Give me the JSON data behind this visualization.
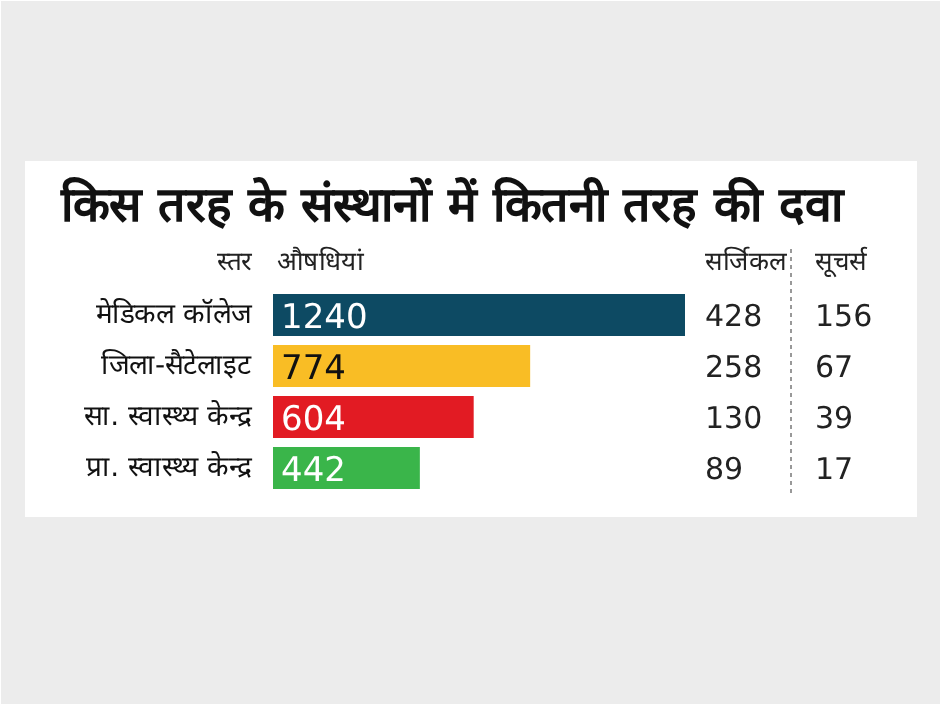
{
  "chart_data": {
    "type": "bar",
    "orientation": "horizontal",
    "title": "किस तरह के संस्थानों में कितनी तरह की दवा",
    "ylabel": "स्तर",
    "xlabel": "औषधियां",
    "categories": [
      "मेडिकल कॉलेज",
      "जिला-सैटेलाइट",
      "सा. स्वास्थ्य केन्द्र",
      "प्रा. स्वास्थ्य केन्द्र"
    ],
    "values": [
      1240,
      774,
      604,
      442
    ],
    "colors": [
      "#0d4a63",
      "#f9bd25",
      "#e21b23",
      "#3ab54a"
    ],
    "data_labels": true,
    "annotations": [
      "सर्जिकल",
      "428",
      "258",
      "130",
      "89",
      "सूचर्स",
      "156",
      "67",
      "39",
      "17"
    ]
  }
}
